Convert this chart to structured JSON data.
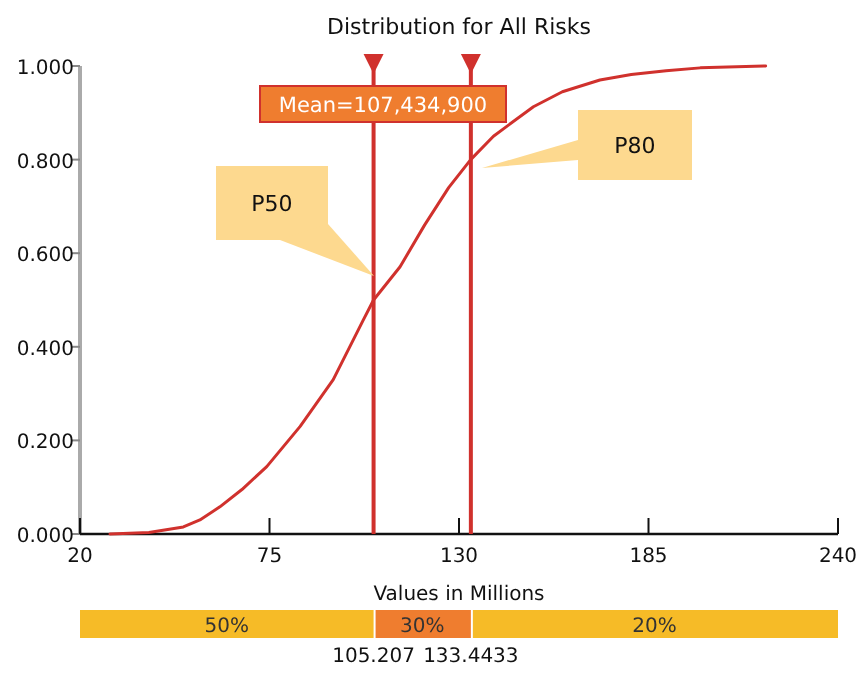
{
  "chart_data": {
    "type": "line",
    "title": "Distribution for All Risks",
    "xlabel": "Values in Millions",
    "series": [
      {
        "color": "#d0312d",
        "x": [
          28.7,
          40,
          50,
          54.8,
          60.6,
          67,
          74.2,
          83.9,
          93.5,
          102.2,
          105.2,
          112.9,
          120,
          127,
          133.4,
          140,
          151.6,
          160,
          170.9,
          180,
          190.1,
          200,
          219
        ],
        "values": [
          0,
          0.003,
          0.015,
          0.03,
          0.058,
          0.095,
          0.144,
          0.23,
          0.33,
          0.457,
          0.5,
          0.571,
          0.66,
          0.74,
          0.8,
          0.85,
          0.913,
          0.945,
          0.97,
          0.982,
          0.99,
          0.996,
          1.0
        ]
      }
    ],
    "xlim": [
      20,
      240
    ],
    "xticks": [
      20,
      75,
      130,
      185,
      240
    ],
    "ylim": [
      0,
      1
    ],
    "yticks": [
      {
        "value": 0,
        "label": "0.000"
      },
      {
        "value": 0.2,
        "label": "0.200"
      },
      {
        "value": 0.4,
        "label": "0.400"
      },
      {
        "value": 0.6,
        "label": "0.600"
      },
      {
        "value": 0.8,
        "label": "0.800"
      },
      {
        "value": 1,
        "label": "1.000"
      }
    ],
    "grid": false,
    "marker": "none",
    "line_style": "solid",
    "ref_lines": [
      {
        "axis": "x",
        "value": 105.207,
        "color": "#d0312d"
      },
      {
        "axis": "x",
        "value": 133.4433,
        "color": "#d0312d"
      }
    ],
    "annotations": [
      "Mean=107,434,900",
      "P50",
      "P80",
      "50%",
      "30%",
      "20%",
      "105.207",
      "133.4433"
    ]
  }
}
